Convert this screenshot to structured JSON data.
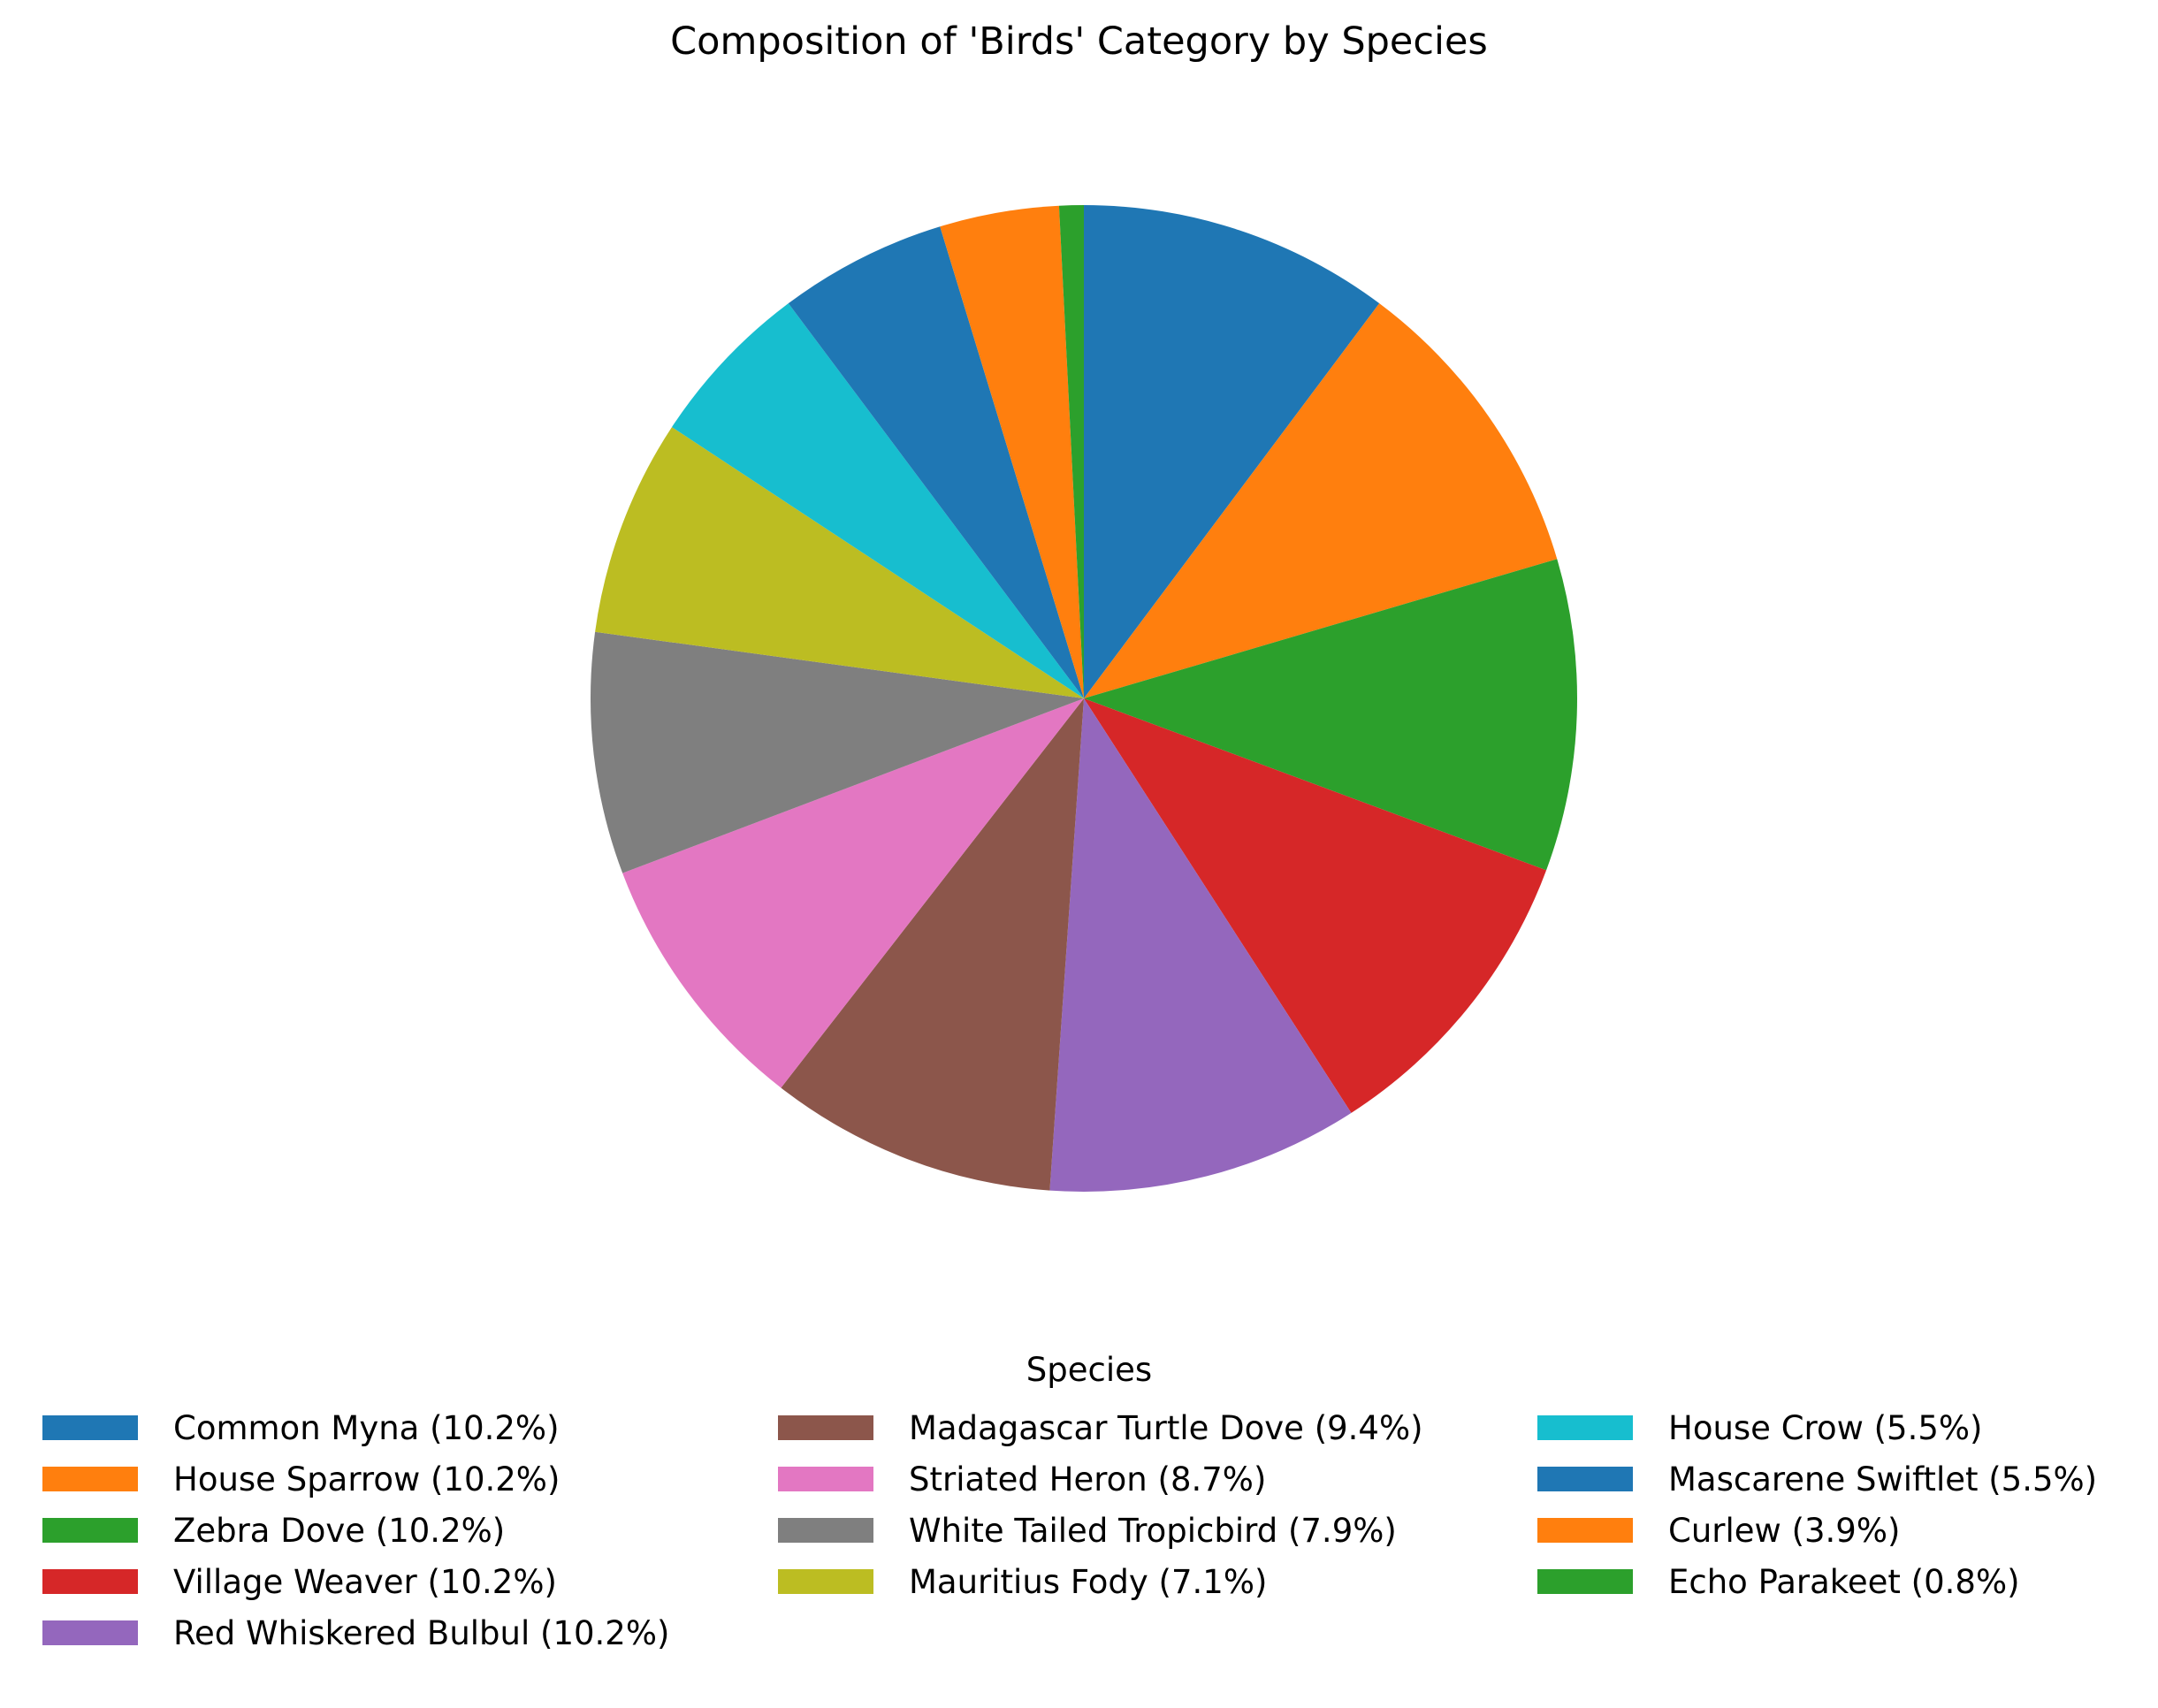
{
  "chart_data": {
    "type": "pie",
    "title": "Composition of 'Birds' Category by Species",
    "legend_title": "Species",
    "legend_placement": "bottom",
    "start_angle_deg": 90,
    "direction": "clockwise",
    "slices": [
      {
        "label": "Common Myna (10.2%)",
        "value": 10.2,
        "color": "#1f77b4"
      },
      {
        "label": "House Sparrow (10.2%)",
        "value": 10.2,
        "color": "#ff7f0e"
      },
      {
        "label": "Zebra Dove (10.2%)",
        "value": 10.2,
        "color": "#2ca02c"
      },
      {
        "label": "Village Weaver (10.2%)",
        "value": 10.2,
        "color": "#d62728"
      },
      {
        "label": "Red Whiskered Bulbul (10.2%)",
        "value": 10.2,
        "color": "#9467bd"
      },
      {
        "label": "Madagascar Turtle Dove (9.4%)",
        "value": 9.4,
        "color": "#8c564b"
      },
      {
        "label": "Striated Heron (8.7%)",
        "value": 8.7,
        "color": "#e377c2"
      },
      {
        "label": "White Tailed Tropicbird (7.9%)",
        "value": 7.9,
        "color": "#7f7f7f"
      },
      {
        "label": "Mauritius Fody (7.1%)",
        "value": 7.1,
        "color": "#bcbd22"
      },
      {
        "label": "House Crow (5.5%)",
        "value": 5.5,
        "color": "#17becf"
      },
      {
        "label": "Mascarene Swiftlet (5.5%)",
        "value": 5.5,
        "color": "#1f77b4"
      },
      {
        "label": "Curlew (3.9%)",
        "value": 3.9,
        "color": "#ff7f0e"
      },
      {
        "label": "Echo Parakeet (0.8%)",
        "value": 0.8,
        "color": "#2ca02c"
      }
    ]
  }
}
